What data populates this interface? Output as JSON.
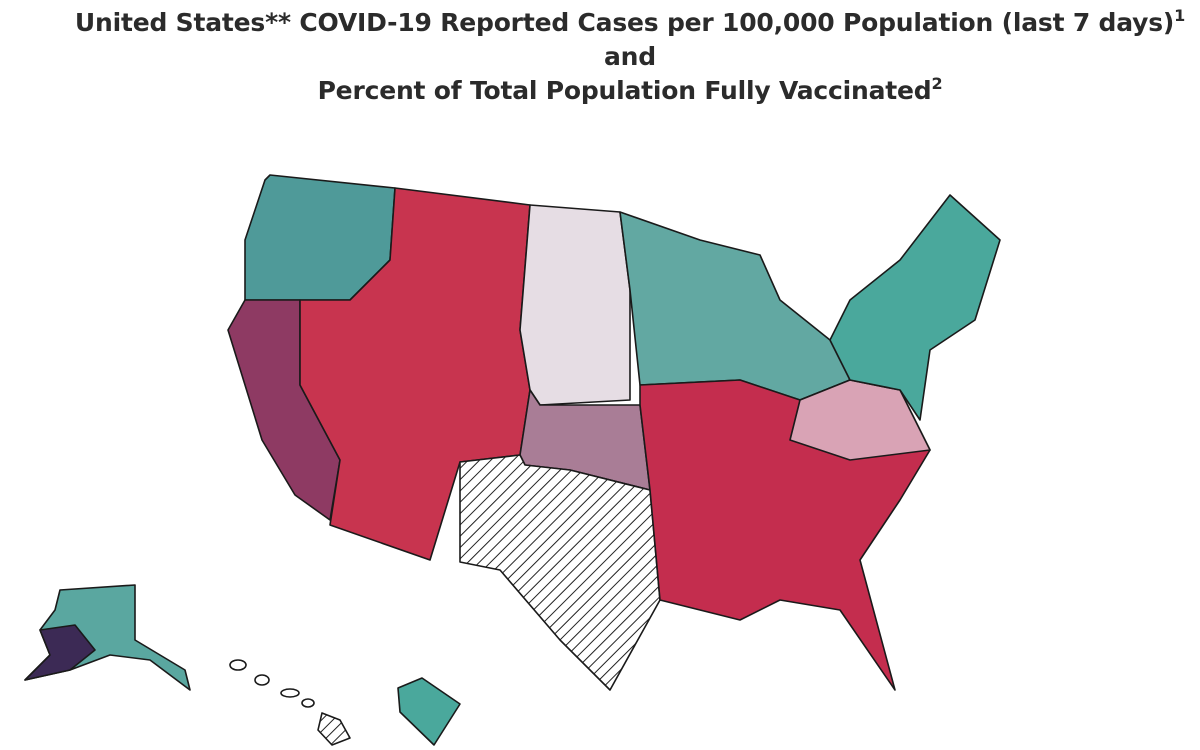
{
  "title": {
    "line1": "United States** COVID-19 Reported Cases per 100,000 Population (last 7 days)",
    "sup1": "1",
    "connector": "and",
    "line2": "Percent of Total Population Fully Vaccinated",
    "sup2": "2"
  }
}
